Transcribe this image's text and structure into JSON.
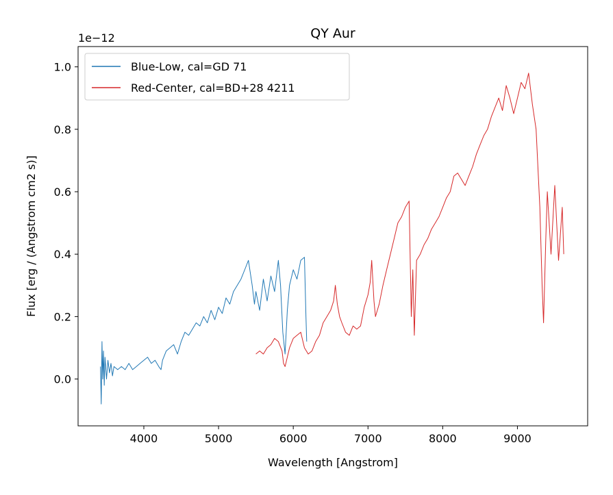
{
  "chart_data": {
    "type": "line",
    "title": "QY Aur",
    "xlabel": "Wavelength [Angstrom]",
    "ylabel": "Flux [erg / (Angstrom cm2 s)]",
    "offset_text": "1e−12",
    "xlim": [
      3120,
      9940
    ],
    "ylim": [
      -0.15,
      1.065
    ],
    "xticks": [
      4000,
      5000,
      6000,
      7000,
      8000,
      9000
    ],
    "xtick_labels": [
      "4000",
      "5000",
      "6000",
      "7000",
      "8000",
      "9000"
    ],
    "yticks": [
      0.0,
      0.2,
      0.4,
      0.6,
      0.8,
      1.0
    ],
    "ytick_labels": [
      "0.0",
      "0.2",
      "0.4",
      "0.6",
      "0.8",
      "1.0"
    ],
    "grid": false,
    "legend_position": "top-left",
    "series": [
      {
        "name": "Blue-Low, cal=GD 71",
        "color": "#1f77b4",
        "x": [
          3420,
          3430,
          3440,
          3450,
          3460,
          3470,
          3480,
          3500,
          3520,
          3540,
          3560,
          3580,
          3600,
          3650,
          3700,
          3750,
          3800,
          3850,
          3900,
          3950,
          4000,
          4050,
          4100,
          4150,
          4200,
          4230,
          4250,
          4300,
          4350,
          4400,
          4450,
          4500,
          4550,
          4600,
          4650,
          4700,
          4750,
          4800,
          4850,
          4900,
          4950,
          5000,
          5050,
          5100,
          5150,
          5200,
          5250,
          5300,
          5350,
          5400,
          5450,
          5480,
          5500,
          5550,
          5600,
          5650,
          5700,
          5750,
          5800,
          5830,
          5860,
          5890,
          5920,
          5950,
          6000,
          6050,
          6100,
          6150,
          6170,
          6180
        ],
        "values": [
          0.04,
          -0.08,
          0.12,
          0.0,
          0.09,
          -0.02,
          0.07,
          0.0,
          0.06,
          0.02,
          0.05,
          0.01,
          0.04,
          0.03,
          0.04,
          0.03,
          0.05,
          0.03,
          0.04,
          0.05,
          0.06,
          0.07,
          0.05,
          0.06,
          0.04,
          0.03,
          0.06,
          0.09,
          0.1,
          0.11,
          0.08,
          0.12,
          0.15,
          0.14,
          0.16,
          0.18,
          0.17,
          0.2,
          0.18,
          0.22,
          0.19,
          0.23,
          0.21,
          0.26,
          0.24,
          0.28,
          0.3,
          0.32,
          0.35,
          0.38,
          0.3,
          0.24,
          0.28,
          0.22,
          0.32,
          0.25,
          0.33,
          0.28,
          0.38,
          0.3,
          0.15,
          0.08,
          0.22,
          0.3,
          0.35,
          0.32,
          0.38,
          0.39,
          0.2,
          0.12
        ]
      },
      {
        "name": "Red-Center, cal=BD+28 4211",
        "color": "#d62728",
        "x": [
          5500,
          5550,
          5600,
          5650,
          5700,
          5750,
          5800,
          5850,
          5870,
          5890,
          5910,
          5950,
          6000,
          6050,
          6100,
          6150,
          6200,
          6250,
          6300,
          6350,
          6400,
          6450,
          6500,
          6540,
          6563,
          6590,
          6620,
          6650,
          6700,
          6750,
          6800,
          6850,
          6900,
          6950,
          7000,
          7030,
          7050,
          7080,
          7100,
          7150,
          7200,
          7250,
          7300,
          7350,
          7400,
          7450,
          7500,
          7550,
          7580,
          7600,
          7620,
          7650,
          7700,
          7750,
          7800,
          7850,
          7900,
          7950,
          8000,
          8050,
          8100,
          8150,
          8200,
          8250,
          8300,
          8350,
          8400,
          8450,
          8500,
          8550,
          8600,
          8650,
          8700,
          8750,
          8800,
          8850,
          8900,
          8950,
          9000,
          9050,
          9100,
          9150,
          9200,
          9250,
          9300,
          9330,
          9350,
          9380,
          9400,
          9450,
          9500,
          9550,
          9600,
          9620
        ],
        "values": [
          0.08,
          0.09,
          0.08,
          0.1,
          0.11,
          0.13,
          0.12,
          0.09,
          0.05,
          0.04,
          0.06,
          0.1,
          0.13,
          0.14,
          0.15,
          0.1,
          0.08,
          0.09,
          0.12,
          0.14,
          0.18,
          0.2,
          0.22,
          0.25,
          0.3,
          0.24,
          0.2,
          0.18,
          0.15,
          0.14,
          0.17,
          0.16,
          0.17,
          0.23,
          0.27,
          0.31,
          0.38,
          0.25,
          0.2,
          0.24,
          0.3,
          0.35,
          0.4,
          0.45,
          0.5,
          0.52,
          0.55,
          0.57,
          0.2,
          0.35,
          0.14,
          0.38,
          0.4,
          0.43,
          0.45,
          0.48,
          0.5,
          0.52,
          0.55,
          0.58,
          0.6,
          0.65,
          0.66,
          0.64,
          0.62,
          0.65,
          0.68,
          0.72,
          0.75,
          0.78,
          0.8,
          0.84,
          0.87,
          0.9,
          0.86,
          0.94,
          0.9,
          0.85,
          0.9,
          0.95,
          0.93,
          0.98,
          0.88,
          0.8,
          0.55,
          0.3,
          0.18,
          0.45,
          0.6,
          0.4,
          0.62,
          0.38,
          0.55,
          0.4
        ]
      }
    ]
  }
}
